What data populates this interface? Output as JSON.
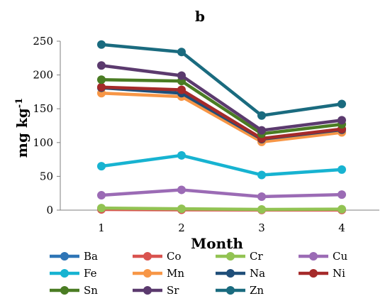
{
  "chart_data": {
    "type": "line",
    "title": "b",
    "xlabel": "Month",
    "ylabel": "mg kg",
    "ylabel_superscript": "-1",
    "x": [
      1,
      2,
      3,
      4
    ],
    "xticks": [
      "1",
      "2",
      "3",
      "4"
    ],
    "ylim": [
      0,
      250
    ],
    "yticks": [
      "0",
      "50",
      "100",
      "150",
      "200",
      "250"
    ],
    "grid": false,
    "legend_position": "bottom",
    "series": [
      {
        "name": "Ba",
        "color": "#2e75b6",
        "values": [
          2,
          1,
          0.5,
          0.5
        ]
      },
      {
        "name": "Co",
        "color": "#d9534f",
        "values": [
          1,
          0.5,
          0.3,
          0.3
        ]
      },
      {
        "name": "Cr",
        "color": "#92c353",
        "values": [
          3,
          2,
          1,
          1.5
        ]
      },
      {
        "name": "Cu",
        "color": "#9b6bb5",
        "values": [
          22,
          30,
          20,
          23
        ]
      },
      {
        "name": "Fe",
        "color": "#17b3d1",
        "values": [
          65,
          81,
          52,
          60
        ]
      },
      {
        "name": "Mn",
        "color": "#f79646",
        "values": [
          173,
          168,
          101,
          115
        ]
      },
      {
        "name": "Na",
        "color": "#1f4e79",
        "values": [
          181,
          173,
          105,
          119
        ]
      },
      {
        "name": "Ni",
        "color": "#a52a2a",
        "values": [
          182,
          178,
          106,
          120
        ]
      },
      {
        "name": "Sn",
        "color": "#4a7c23",
        "values": [
          193,
          191,
          113,
          127
        ]
      },
      {
        "name": "Sr",
        "color": "#5b3a6e",
        "values": [
          214,
          199,
          118,
          133
        ]
      },
      {
        "name": "Zn",
        "color": "#1a6b7f",
        "values": [
          245,
          234,
          140,
          157
        ]
      }
    ]
  }
}
